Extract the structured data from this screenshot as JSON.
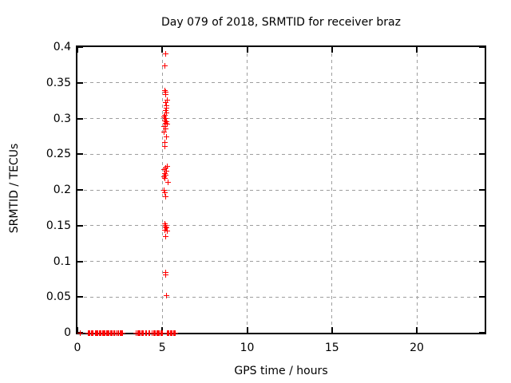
{
  "canvas": {
    "background": "#ffffff",
    "text_color": "#000000",
    "border_color": "#000000",
    "grid_color": "#9e9e9e"
  },
  "chart_data": {
    "type": "scatter",
    "title": "Day 079 of 2018, SRMTID for receiver braz",
    "xlabel": "GPS time / hours",
    "ylabel": "SRMTID / TECUs",
    "xlim": [
      0,
      24
    ],
    "ylim": [
      0,
      0.4
    ],
    "xticks": [
      0,
      5,
      10,
      15,
      20
    ],
    "yticks": [
      0,
      0.05,
      0.1,
      0.15,
      0.2,
      0.25,
      0.3,
      0.35,
      0.4
    ],
    "grid": true,
    "grid_style": "dashed",
    "legend": "none",
    "marker": "plus",
    "marker_size": 7,
    "marker_color": "#ff0000",
    "series": [
      {
        "name": "SRMTID",
        "points": [
          [
            0.16,
            0
          ],
          [
            0.62,
            0
          ],
          [
            0.68,
            0
          ],
          [
            0.74,
            0
          ],
          [
            0.8,
            0
          ],
          [
            0.86,
            0
          ],
          [
            0.92,
            0
          ],
          [
            1.04,
            0
          ],
          [
            1.1,
            0
          ],
          [
            1.16,
            0
          ],
          [
            1.22,
            0
          ],
          [
            1.28,
            0
          ],
          [
            1.34,
            0
          ],
          [
            1.4,
            0
          ],
          [
            1.46,
            0
          ],
          [
            1.52,
            0
          ],
          [
            1.58,
            0
          ],
          [
            1.64,
            0
          ],
          [
            1.7,
            0
          ],
          [
            1.76,
            0
          ],
          [
            1.82,
            0
          ],
          [
            1.88,
            0
          ],
          [
            1.94,
            0
          ],
          [
            2.0,
            0
          ],
          [
            2.06,
            0
          ],
          [
            2.12,
            0
          ],
          [
            2.18,
            0
          ],
          [
            2.26,
            0
          ],
          [
            2.38,
            0
          ],
          [
            2.44,
            0
          ],
          [
            2.5,
            0
          ],
          [
            2.56,
            0
          ],
          [
            2.62,
            0
          ],
          [
            2.68,
            0
          ],
          [
            3.47,
            0
          ],
          [
            3.53,
            0
          ],
          [
            3.59,
            0
          ],
          [
            3.65,
            0
          ],
          [
            3.71,
            0
          ],
          [
            3.77,
            0
          ],
          [
            3.83,
            0
          ],
          [
            3.89,
            0
          ],
          [
            4.0,
            0
          ],
          [
            4.06,
            0
          ],
          [
            4.2,
            0
          ],
          [
            4.26,
            0
          ],
          [
            4.42,
            0
          ],
          [
            4.48,
            0
          ],
          [
            4.54,
            0
          ],
          [
            4.6,
            0
          ],
          [
            4.66,
            0
          ],
          [
            4.72,
            0
          ],
          [
            4.78,
            0
          ],
          [
            4.84,
            0
          ],
          [
            4.9,
            0
          ],
          [
            4.96,
            0
          ],
          [
            5.02,
            0
          ],
          [
            5.29,
            0
          ],
          [
            5.35,
            0
          ],
          [
            5.41,
            0
          ],
          [
            5.47,
            0
          ],
          [
            5.53,
            0
          ],
          [
            5.59,
            0
          ],
          [
            5.65,
            0
          ],
          [
            5.71,
            0
          ],
          [
            5.76,
            0
          ],
          [
            5.18,
            0.39
          ],
          [
            5.15,
            0.374
          ],
          [
            5.17,
            0.339
          ],
          [
            5.22,
            0.337
          ],
          [
            5.19,
            0.334
          ],
          [
            5.28,
            0.326
          ],
          [
            5.2,
            0.322
          ],
          [
            5.24,
            0.318
          ],
          [
            5.27,
            0.315
          ],
          [
            5.22,
            0.311
          ],
          [
            5.25,
            0.308
          ],
          [
            5.17,
            0.305
          ],
          [
            5.1,
            0.302
          ],
          [
            5.21,
            0.3
          ],
          [
            5.14,
            0.297
          ],
          [
            5.27,
            0.295
          ],
          [
            5.18,
            0.293
          ],
          [
            5.31,
            0.292
          ],
          [
            5.11,
            0.289
          ],
          [
            5.21,
            0.286
          ],
          [
            5.11,
            0.281
          ],
          [
            5.27,
            0.274
          ],
          [
            5.14,
            0.267
          ],
          [
            5.17,
            0.261
          ],
          [
            5.31,
            0.233
          ],
          [
            5.22,
            0.231
          ],
          [
            5.09,
            0.228
          ],
          [
            5.27,
            0.226
          ],
          [
            5.13,
            0.223
          ],
          [
            5.19,
            0.221
          ],
          [
            5.09,
            0.218
          ],
          [
            5.16,
            0.216
          ],
          [
            5.33,
            0.211
          ],
          [
            5.09,
            0.2
          ],
          [
            5.13,
            0.196
          ],
          [
            5.19,
            0.19
          ],
          [
            5.16,
            0.153
          ],
          [
            5.19,
            0.15
          ],
          [
            5.22,
            0.148
          ],
          [
            5.25,
            0.147
          ],
          [
            5.17,
            0.144
          ],
          [
            5.28,
            0.143
          ],
          [
            5.2,
            0.135
          ],
          [
            5.18,
            0.084
          ],
          [
            5.22,
            0.081
          ],
          [
            5.23,
            0.052
          ]
        ]
      }
    ]
  }
}
